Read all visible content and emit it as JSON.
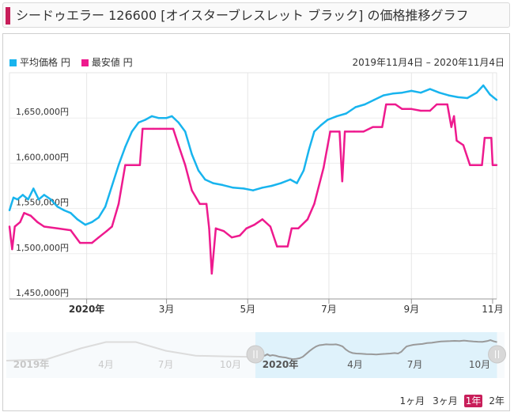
{
  "header": {
    "title": "シードゥエラー 126600 [オイスターブレスレット ブラック] の価格推移グラフ"
  },
  "legend": {
    "avg_label": "平均価格 円",
    "min_label": "最安値 円"
  },
  "date_range": "2019年11月4日 – 2020年11月4日",
  "colors": {
    "avg": "#18b4ee",
    "min": "#ee1a8e",
    "accent": "#c81e5a"
  },
  "zoom_buttons": [
    {
      "label": "1ヶ月",
      "active": false
    },
    {
      "label": "3ヶ月",
      "active": false
    },
    {
      "label": "1年",
      "active": true
    },
    {
      "label": "2年",
      "active": false
    }
  ],
  "navigator": {
    "labels": [
      "2019年",
      "4月",
      "7月",
      "10月",
      "2020年",
      "4月",
      "7月",
      "10月"
    ],
    "bold_labels": [
      "2019年",
      "2020年"
    ]
  },
  "chart_data": {
    "type": "line",
    "x_start": "2019-11-04",
    "x_end": "2020-11-04",
    "ylim": [
      1450000,
      1700000
    ],
    "y_ticks": [
      1450000,
      1500000,
      1550000,
      1600000,
      1650000
    ],
    "y_tick_labels": [
      "1,450,000円",
      "1,500,000円",
      "1,550,000円",
      "1,600,000円",
      "1,650,000円"
    ],
    "x_ticks": [
      {
        "date": "2020-01-01",
        "label": "2020年",
        "bold": true
      },
      {
        "date": "2020-03-01",
        "label": "3月",
        "bold": false
      },
      {
        "date": "2020-05-01",
        "label": "5月",
        "bold": false
      },
      {
        "date": "2020-07-01",
        "label": "7月",
        "bold": false
      },
      {
        "date": "2020-09-01",
        "label": "9月",
        "bold": false
      },
      {
        "date": "2020-11-01",
        "label": "11月",
        "bold": false
      }
    ],
    "grid": "vertical",
    "legend_position": "top-left",
    "series": [
      {
        "name": "平均価格 円",
        "points": [
          [
            "2019-11-04",
            1548000
          ],
          [
            "2019-11-07",
            1562000
          ],
          [
            "2019-11-10",
            1560000
          ],
          [
            "2019-11-14",
            1565000
          ],
          [
            "2019-11-18",
            1560000
          ],
          [
            "2019-11-22",
            1572000
          ],
          [
            "2019-11-26",
            1560000
          ],
          [
            "2019-11-30",
            1565000
          ],
          [
            "2019-12-05",
            1560000
          ],
          [
            "2019-12-10",
            1552000
          ],
          [
            "2019-12-15",
            1548000
          ],
          [
            "2019-12-20",
            1545000
          ],
          [
            "2019-12-25",
            1538000
          ],
          [
            "2019-12-31",
            1532000
          ],
          [
            "2020-01-05",
            1535000
          ],
          [
            "2020-01-10",
            1540000
          ],
          [
            "2020-01-15",
            1552000
          ],
          [
            "2020-01-20",
            1575000
          ],
          [
            "2020-01-25",
            1598000
          ],
          [
            "2020-01-30",
            1618000
          ],
          [
            "2020-02-04",
            1635000
          ],
          [
            "2020-02-09",
            1645000
          ],
          [
            "2020-02-14",
            1648000
          ],
          [
            "2020-02-19",
            1652000
          ],
          [
            "2020-02-24",
            1650000
          ],
          [
            "2020-03-01",
            1650000
          ],
          [
            "2020-03-05",
            1652000
          ],
          [
            "2020-03-10",
            1645000
          ],
          [
            "2020-03-15",
            1635000
          ],
          [
            "2020-03-20",
            1610000
          ],
          [
            "2020-03-25",
            1592000
          ],
          [
            "2020-03-30",
            1582000
          ],
          [
            "2020-04-05",
            1578000
          ],
          [
            "2020-04-12",
            1576000
          ],
          [
            "2020-04-20",
            1573000
          ],
          [
            "2020-04-28",
            1572000
          ],
          [
            "2020-05-05",
            1570000
          ],
          [
            "2020-05-12",
            1573000
          ],
          [
            "2020-05-19",
            1575000
          ],
          [
            "2020-05-26",
            1578000
          ],
          [
            "2020-06-02",
            1582000
          ],
          [
            "2020-06-07",
            1578000
          ],
          [
            "2020-06-12",
            1592000
          ],
          [
            "2020-06-16",
            1615000
          ],
          [
            "2020-06-20",
            1635000
          ],
          [
            "2020-06-25",
            1642000
          ],
          [
            "2020-06-30",
            1648000
          ],
          [
            "2020-07-07",
            1652000
          ],
          [
            "2020-07-14",
            1655000
          ],
          [
            "2020-07-21",
            1662000
          ],
          [
            "2020-07-28",
            1665000
          ],
          [
            "2020-08-04",
            1670000
          ],
          [
            "2020-08-11",
            1675000
          ],
          [
            "2020-08-18",
            1677000
          ],
          [
            "2020-08-25",
            1678000
          ],
          [
            "2020-09-01",
            1680000
          ],
          [
            "2020-09-08",
            1678000
          ],
          [
            "2020-09-15",
            1682000
          ],
          [
            "2020-09-22",
            1678000
          ],
          [
            "2020-09-29",
            1675000
          ],
          [
            "2020-10-06",
            1673000
          ],
          [
            "2020-10-13",
            1672000
          ],
          [
            "2020-10-20",
            1678000
          ],
          [
            "2020-10-25",
            1686000
          ],
          [
            "2020-10-30",
            1676000
          ],
          [
            "2020-11-04",
            1670000
          ]
        ]
      },
      {
        "name": "最安値 円",
        "points": [
          [
            "2019-11-04",
            1530000
          ],
          [
            "2019-11-06",
            1505000
          ],
          [
            "2019-11-08",
            1530000
          ],
          [
            "2019-11-12",
            1535000
          ],
          [
            "2019-11-15",
            1545000
          ],
          [
            "2019-11-20",
            1542000
          ],
          [
            "2019-11-25",
            1535000
          ],
          [
            "2019-11-30",
            1530000
          ],
          [
            "2019-12-10",
            1528000
          ],
          [
            "2019-12-20",
            1526000
          ],
          [
            "2019-12-27",
            1512000
          ],
          [
            "2020-01-05",
            1512000
          ],
          [
            "2020-01-10",
            1518000
          ],
          [
            "2020-01-16",
            1525000
          ],
          [
            "2020-01-20",
            1530000
          ],
          [
            "2020-01-25",
            1555000
          ],
          [
            "2020-01-30",
            1598000
          ],
          [
            "2020-02-05",
            1598000
          ],
          [
            "2020-02-10",
            1598000
          ],
          [
            "2020-02-12",
            1638000
          ],
          [
            "2020-02-20",
            1638000
          ],
          [
            "2020-02-25",
            1638000
          ],
          [
            "2020-03-01",
            1638000
          ],
          [
            "2020-03-06",
            1638000
          ],
          [
            "2020-03-10",
            1620000
          ],
          [
            "2020-03-15",
            1598000
          ],
          [
            "2020-03-20",
            1570000
          ],
          [
            "2020-03-26",
            1555000
          ],
          [
            "2020-03-31",
            1555000
          ],
          [
            "2020-04-02",
            1528000
          ],
          [
            "2020-04-04",
            1478000
          ],
          [
            "2020-04-07",
            1528000
          ],
          [
            "2020-04-13",
            1525000
          ],
          [
            "2020-04-19",
            1518000
          ],
          [
            "2020-04-25",
            1520000
          ],
          [
            "2020-04-30",
            1528000
          ],
          [
            "2020-05-06",
            1532000
          ],
          [
            "2020-05-12",
            1538000
          ],
          [
            "2020-05-18",
            1530000
          ],
          [
            "2020-05-23",
            1508000
          ],
          [
            "2020-05-31",
            1508000
          ],
          [
            "2020-06-03",
            1528000
          ],
          [
            "2020-06-08",
            1528000
          ],
          [
            "2020-06-15",
            1538000
          ],
          [
            "2020-06-20",
            1555000
          ],
          [
            "2020-06-27",
            1595000
          ],
          [
            "2020-07-02",
            1635000
          ],
          [
            "2020-07-09",
            1635000
          ],
          [
            "2020-07-11",
            1580000
          ],
          [
            "2020-07-13",
            1635000
          ],
          [
            "2020-07-20",
            1635000
          ],
          [
            "2020-07-27",
            1635000
          ],
          [
            "2020-08-03",
            1640000
          ],
          [
            "2020-08-10",
            1640000
          ],
          [
            "2020-08-13",
            1665000
          ],
          [
            "2020-08-20",
            1665000
          ],
          [
            "2020-08-25",
            1660000
          ],
          [
            "2020-09-01",
            1660000
          ],
          [
            "2020-09-08",
            1658000
          ],
          [
            "2020-09-15",
            1658000
          ],
          [
            "2020-09-20",
            1665000
          ],
          [
            "2020-09-28",
            1665000
          ],
          [
            "2020-10-01",
            1640000
          ],
          [
            "2020-10-03",
            1652000
          ],
          [
            "2020-10-05",
            1625000
          ],
          [
            "2020-10-10",
            1620000
          ],
          [
            "2020-10-15",
            1598000
          ],
          [
            "2020-10-20",
            1598000
          ],
          [
            "2020-10-24",
            1598000
          ],
          [
            "2020-10-26",
            1628000
          ],
          [
            "2020-10-31",
            1628000
          ],
          [
            "2020-11-01",
            1598000
          ],
          [
            "2020-11-04",
            1598000
          ]
        ]
      }
    ]
  }
}
